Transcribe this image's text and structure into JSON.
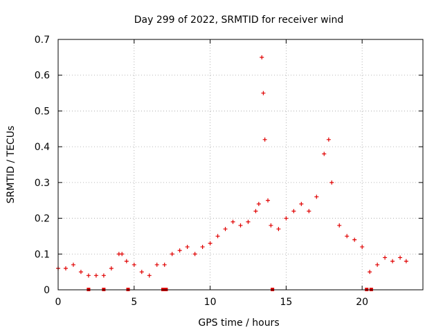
{
  "chart_data": {
    "type": "scatter",
    "title": "Day 299 of 2022, SRMTID for receiver wind",
    "xlabel": "GPS time / hours",
    "ylabel": "SRMTID / TECUs",
    "xlim": [
      0,
      24
    ],
    "ylim": [
      0,
      0.7
    ],
    "x_ticks": [
      0,
      5,
      10,
      15,
      20
    ],
    "y_ticks": [
      0,
      0.1,
      0.2,
      0.3,
      0.4,
      0.5,
      0.6,
      0.7
    ],
    "grid": true,
    "marker": "+",
    "color": "#e00000",
    "series": [
      {
        "name": "SRMTID",
        "x": [
          0.0,
          0.5,
          1.0,
          1.5,
          2.0,
          2.5,
          3.0,
          3.5,
          4.0,
          4.2,
          4.5,
          5.0,
          5.5,
          6.0,
          6.5,
          7.0,
          7.5,
          8.0,
          8.5,
          9.0,
          9.5,
          10.0,
          10.5,
          11.0,
          11.5,
          12.0,
          12.5,
          13.0,
          13.2,
          13.4,
          13.5,
          13.6,
          13.8,
          14.0,
          14.5,
          15.0,
          15.5,
          16.0,
          16.5,
          17.0,
          17.5,
          17.8,
          18.0,
          18.5,
          19.0,
          19.5,
          20.0,
          20.5,
          21.0,
          21.5,
          22.0,
          22.5,
          22.9
        ],
        "y": [
          0.06,
          0.06,
          0.07,
          0.05,
          0.04,
          0.04,
          0.04,
          0.06,
          0.1,
          0.1,
          0.08,
          0.07,
          0.05,
          0.04,
          0.07,
          0.07,
          0.1,
          0.11,
          0.12,
          0.1,
          0.12,
          0.13,
          0.15,
          0.17,
          0.19,
          0.18,
          0.19,
          0.22,
          0.24,
          0.65,
          0.55,
          0.42,
          0.25,
          0.18,
          0.17,
          0.2,
          0.22,
          0.24,
          0.22,
          0.26,
          0.38,
          0.42,
          0.3,
          0.18,
          0.15,
          0.14,
          0.12,
          0.05,
          0.07,
          0.09,
          0.08,
          0.09,
          0.08
        ]
      }
    ],
    "outage_markers": [
      2.0,
      3.0,
      4.6,
      6.9,
      7.1,
      14.1,
      20.3,
      20.6
    ]
  }
}
